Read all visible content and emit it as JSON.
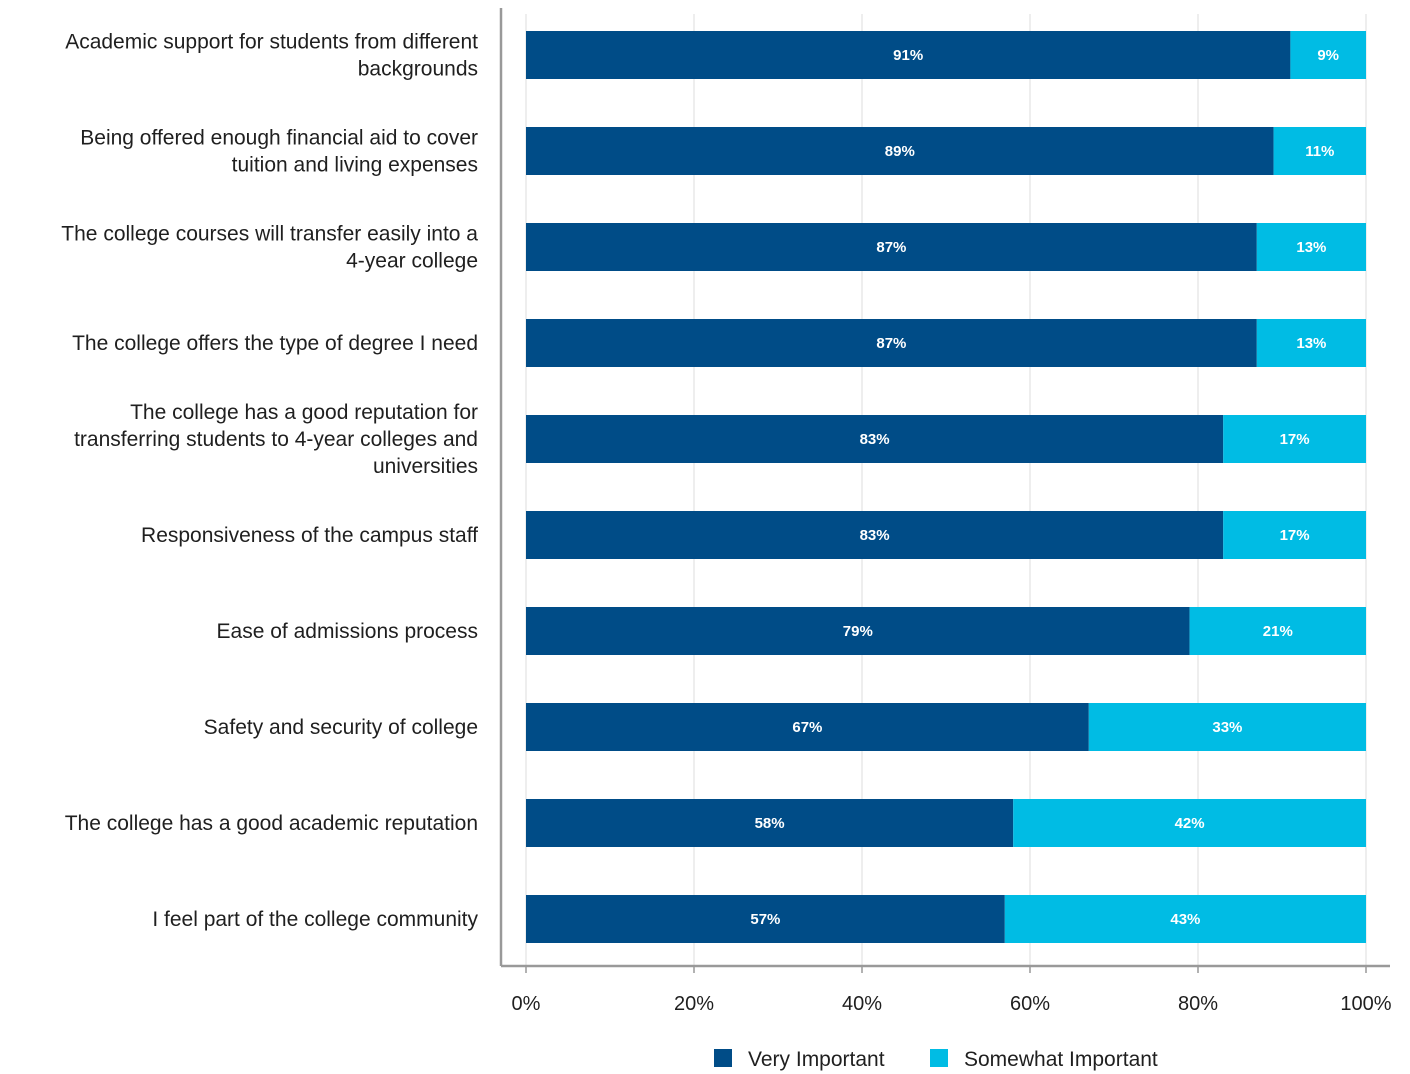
{
  "chart_data": {
    "type": "bar",
    "orientation": "horizontal",
    "stacked": true,
    "categories": [
      "Academic support for students from different backgrounds",
      "Being offered enough financial aid to cover tuition and living expenses",
      "The college courses will transfer easily into a 4-year college",
      "The college offers the type of degree I need",
      "The college has a good reputation for transferring students to 4-year colleges and universities",
      "Responsiveness of the campus staff",
      "Ease of admissions process",
      "Safety and security of college",
      "The college has a good academic reputation",
      "I feel part of the college community"
    ],
    "category_lines": [
      [
        "Academic support for students from different",
        "backgrounds"
      ],
      [
        "Being offered enough financial aid to cover",
        "tuition and living expenses"
      ],
      [
        "The college courses will transfer easily into a",
        "4-year college"
      ],
      [
        "The college offers the type of degree I need"
      ],
      [
        "The college has a good reputation for",
        "transferring students to 4-year colleges and",
        "universities"
      ],
      [
        "Responsiveness of the campus staff"
      ],
      [
        "Ease of admissions process"
      ],
      [
        "Safety and security of college"
      ],
      [
        "The college has a good academic reputation"
      ],
      [
        "I feel part of the college community"
      ]
    ],
    "series": [
      {
        "name": "Very Important",
        "color": "#004c87",
        "values": [
          91,
          89,
          87,
          87,
          83,
          83,
          79,
          67,
          58,
          57
        ],
        "labels": [
          "91%",
          "89%",
          "87%",
          "87%",
          "83%",
          "83%",
          "79%",
          "67%",
          "58%",
          "57%"
        ]
      },
      {
        "name": "Somewhat Important",
        "color": "#00bce4",
        "values": [
          9,
          11,
          13,
          13,
          17,
          17,
          21,
          33,
          42,
          43
        ],
        "labels": [
          "9%",
          "11%",
          "13%",
          "13%",
          "17%",
          "17%",
          "21%",
          "33%",
          "42%",
          "43%"
        ]
      }
    ],
    "xlim": [
      0,
      100
    ],
    "xticks": [
      0,
      20,
      40,
      60,
      80,
      100
    ],
    "xtick_labels": [
      "0%",
      "20%",
      "40%",
      "60%",
      "80%",
      "100%"
    ],
    "grid": true,
    "legend_position": "bottom-center",
    "axis_color": "#999999",
    "grid_color": "#e3e3e3"
  }
}
